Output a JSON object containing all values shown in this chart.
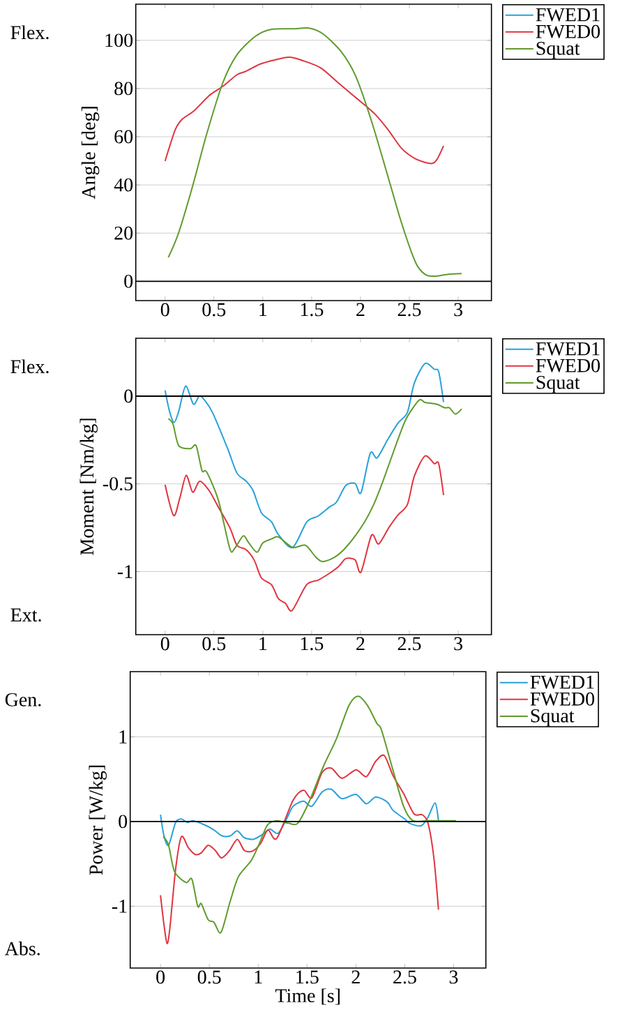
{
  "chart_data": [
    {
      "type": "line",
      "ylabel": "Angle [deg]",
      "annotations": [
        "Flex."
      ],
      "xlim": [
        -0.3,
        3.34
      ],
      "ylim": [
        -8,
        115
      ],
      "xticks": [
        0,
        0.5,
        1,
        1.5,
        2,
        2.5,
        3
      ],
      "yticks": [
        0,
        20,
        40,
        60,
        80,
        100
      ],
      "grid": "y",
      "legend": "top right",
      "ref_lines": [
        {
          "axis": "y",
          "value": 0,
          "color": "#000000"
        }
      ],
      "series": [
        {
          "name": "FWED1",
          "color": "#27a1db"
        },
        {
          "name": "FWED0",
          "color": "#e0343f",
          "x": [
            0,
            0.105,
            0.176,
            0.295,
            0.45,
            0.59,
            0.735,
            0.83,
            0.97,
            1.115,
            1.27,
            1.4,
            1.59,
            1.8,
            2.0,
            2.15,
            2.28,
            2.42,
            2.565,
            2.72,
            2.78,
            2.85
          ],
          "values": [
            49.9,
            63,
            67.3,
            70.7,
            77,
            80.9,
            85.7,
            87.2,
            90.1,
            91.8,
            93,
            91.7,
            88.6,
            81.4,
            74.6,
            69.3,
            63,
            55.2,
            50.8,
            48.9,
            50.4,
            56.2
          ]
        },
        {
          "name": "Squat",
          "color": "#5f9b2c",
          "x": [
            0.033,
            0.14,
            0.283,
            0.425,
            0.59,
            0.735,
            0.925,
            1.09,
            1.33,
            1.47,
            1.615,
            1.8,
            1.95,
            2.11,
            2.28,
            2.42,
            2.565,
            2.66,
            2.755,
            2.9,
            3.035
          ],
          "values": [
            9.9,
            20.3,
            39.7,
            61,
            82.3,
            94,
            101.7,
            104.6,
            104.8,
            105.1,
            102.7,
            95.4,
            85.2,
            66.8,
            43.6,
            24.2,
            7.7,
            2.9,
            2.1,
            2.9,
            3.2
          ]
        }
      ]
    },
    {
      "type": "line",
      "ylabel": "Moment [Nm/kg]",
      "annotations": [
        "Flex.",
        "Ext."
      ],
      "xlim": [
        -0.3,
        3.34
      ],
      "ylim": [
        -1.36,
        0.33
      ],
      "xticks": [
        0,
        0.5,
        1,
        1.5,
        2,
        2.5,
        3
      ],
      "yticks": [
        -1,
        -0.5,
        0
      ],
      "grid": "y",
      "legend": "top right",
      "ref_lines": [
        {
          "axis": "y",
          "value": 0,
          "color": "#000000"
        }
      ],
      "series": [
        {
          "name": "FWED1",
          "color": "#27a1db",
          "x": [
            0,
            0.045,
            0.093,
            0.14,
            0.21,
            0.29,
            0.35,
            0.4,
            0.485,
            0.64,
            0.735,
            0.83,
            0.9,
            0.985,
            1.09,
            1.16,
            1.305,
            1.45,
            1.565,
            1.685,
            1.755,
            1.85,
            1.945,
            2.005,
            2.1,
            2.17,
            2.28,
            2.385,
            2.48,
            2.55,
            2.66,
            2.755,
            2.8,
            2.85
          ],
          "values": [
            0.033,
            -0.086,
            -0.15,
            -0.086,
            0.057,
            -0.046,
            0,
            -0.02,
            -0.093,
            -0.299,
            -0.438,
            -0.485,
            -0.538,
            -0.664,
            -0.717,
            -0.79,
            -0.863,
            -0.717,
            -0.684,
            -0.631,
            -0.604,
            -0.509,
            -0.498,
            -0.551,
            -0.325,
            -0.352,
            -0.246,
            -0.153,
            -0.093,
            0.073,
            0.186,
            0.153,
            0.139,
            -0.033
          ]
        },
        {
          "name": "FWED0",
          "color": "#e0343f",
          "x": [
            0,
            0.088,
            0.152,
            0.216,
            0.283,
            0.354,
            0.45,
            0.544,
            0.663,
            0.735,
            0.83,
            0.913,
            0.985,
            1.09,
            1.16,
            1.233,
            1.3,
            1.447,
            1.566,
            1.685,
            1.78,
            1.85,
            1.945,
            2.005,
            2.113,
            2.185,
            2.29,
            2.385,
            2.48,
            2.55,
            2.66,
            2.755,
            2.8,
            2.85
          ],
          "values": [
            -0.505,
            -0.681,
            -0.578,
            -0.452,
            -0.548,
            -0.485,
            -0.538,
            -0.631,
            -0.75,
            -0.85,
            -0.876,
            -0.936,
            -1.036,
            -1.076,
            -1.155,
            -1.182,
            -1.222,
            -1.076,
            -1.049,
            -1.009,
            -0.969,
            -0.926,
            -0.934,
            -1.003,
            -0.793,
            -0.843,
            -0.75,
            -0.677,
            -0.618,
            -0.458,
            -0.341,
            -0.385,
            -0.385,
            -0.564
          ]
        },
        {
          "name": "Squat",
          "color": "#5f9b2c",
          "x": [
            0.033,
            0.081,
            0.14,
            0.26,
            0.318,
            0.378,
            0.425,
            0.544,
            0.663,
            0.71,
            0.8,
            0.853,
            0.94,
            1.0,
            1.09,
            1.16,
            1.305,
            1.435,
            1.54,
            1.61,
            1.73,
            1.85,
            2.02,
            2.135,
            2.23,
            2.375,
            2.47,
            2.6,
            2.66,
            2.78,
            2.86,
            2.91,
            2.97,
            3.035
          ],
          "values": [
            -0.129,
            -0.159,
            -0.283,
            -0.299,
            -0.283,
            -0.425,
            -0.432,
            -0.591,
            -0.87,
            -0.87,
            -0.797,
            -0.834,
            -0.89,
            -0.837,
            -0.814,
            -0.803,
            -0.863,
            -0.85,
            -0.916,
            -0.943,
            -0.92,
            -0.863,
            -0.737,
            -0.618,
            -0.485,
            -0.259,
            -0.126,
            -0.023,
            -0.036,
            -0.046,
            -0.066,
            -0.066,
            -0.102,
            -0.073
          ]
        }
      ]
    },
    {
      "type": "line",
      "xlabel": "Time [s]",
      "ylabel": "Power [W/kg]",
      "annotations": [
        "Gen.",
        "Abs."
      ],
      "xlim": [
        -0.31,
        3.33
      ],
      "ylim": [
        -1.73,
        1.77
      ],
      "xticks": [
        0,
        0.5,
        1,
        1.5,
        2,
        2.5,
        3
      ],
      "yticks": [
        -1,
        0,
        1
      ],
      "grid": "y",
      "legend": "top right",
      "ref_lines": [
        {
          "axis": "y",
          "value": 0,
          "color": "#000000"
        }
      ],
      "series": [
        {
          "name": "FWED1",
          "color": "#27a1db",
          "x": [
            0,
            0.036,
            0.083,
            0.155,
            0.214,
            0.274,
            0.333,
            0.452,
            0.548,
            0.631,
            0.714,
            0.786,
            0.857,
            0.952,
            1.048,
            1.119,
            1.202,
            1.286,
            1.357,
            1.464,
            1.548,
            1.655,
            1.75,
            1.857,
            2.0,
            2.107,
            2.202,
            2.321,
            2.381,
            2.5,
            2.548,
            2.667,
            2.738,
            2.81,
            2.845
          ],
          "values": [
            0.08,
            -0.17,
            -0.28,
            -0.01,
            0.03,
            -0.01,
            0.01,
            -0.04,
            -0.1,
            -0.17,
            -0.17,
            -0.11,
            -0.19,
            -0.21,
            -0.15,
            -0.09,
            -0.14,
            0.02,
            0.18,
            0.24,
            0.18,
            0.35,
            0.38,
            0.27,
            0.32,
            0.21,
            0.29,
            0.23,
            0.13,
            0.03,
            -0.02,
            -0.05,
            0.05,
            0.22,
            0.01
          ]
        },
        {
          "name": "FWED0",
          "color": "#e0343f",
          "x": [
            0,
            0.036,
            0.067,
            0.095,
            0.155,
            0.214,
            0.286,
            0.357,
            0.417,
            0.488,
            0.56,
            0.624,
            0.702,
            0.786,
            0.857,
            0.94,
            1.024,
            1.1,
            1.19,
            1.357,
            1.464,
            1.548,
            1.655,
            1.75,
            1.857,
            2.0,
            2.107,
            2.202,
            2.29,
            2.381,
            2.488,
            2.595,
            2.679,
            2.738,
            2.798,
            2.845
          ],
          "values": [
            -0.87,
            -1.22,
            -1.44,
            -1.27,
            -0.56,
            -0.18,
            -0.31,
            -0.39,
            -0.37,
            -0.28,
            -0.34,
            -0.43,
            -0.35,
            -0.21,
            -0.34,
            -0.35,
            -0.26,
            -0.1,
            -0.2,
            0.25,
            0.37,
            0.28,
            0.58,
            0.63,
            0.51,
            0.61,
            0.53,
            0.71,
            0.78,
            0.54,
            0.33,
            0.09,
            0.08,
            -0.02,
            -0.43,
            -1.04
          ]
        },
        {
          "name": "Squat",
          "color": "#5f9b2c",
          "x": [
            0.029,
            0.083,
            0.143,
            0.262,
            0.321,
            0.381,
            0.417,
            0.488,
            0.548,
            0.619,
            0.714,
            0.798,
            0.929,
            1.012,
            1.095,
            1.19,
            1.31,
            1.405,
            1.524,
            1.667,
            1.798,
            1.929,
            2.024,
            2.119,
            2.214,
            2.262,
            2.381,
            2.488,
            2.583,
            2.738,
            3.024
          ],
          "values": [
            -0.18,
            -0.28,
            -0.59,
            -0.72,
            -0.68,
            -1.0,
            -0.97,
            -1.16,
            -1.19,
            -1.31,
            -0.94,
            -0.65,
            -0.46,
            -0.26,
            -0.04,
            0.01,
            -0.02,
            -0.02,
            0.24,
            0.65,
            0.97,
            1.37,
            1.48,
            1.37,
            1.16,
            1.08,
            0.6,
            0.18,
            0.01,
            0.01,
            0.01
          ]
        }
      ]
    }
  ]
}
